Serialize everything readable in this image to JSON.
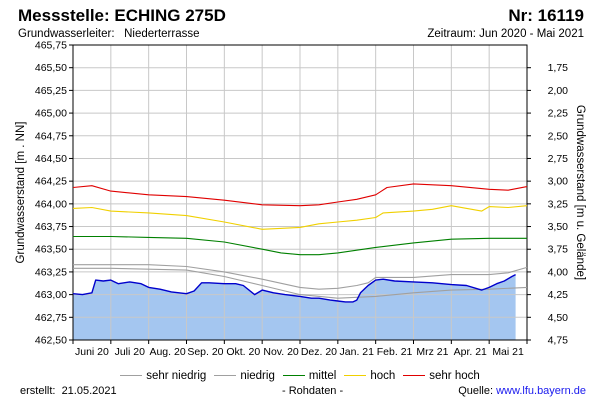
{
  "header": {
    "title": "Messstelle: ECHING 275D",
    "nr": "Nr: 16119",
    "aquifer": "Grundwasserleiter:   Niederterrasse",
    "period": "Zeitraum: Jun 2020 - Mai 2021"
  },
  "footer": {
    "created": "erstellt:  21.05.2021",
    "raw": "- Rohdaten -",
    "source_label": "Quelle: ",
    "source_link": "www.lfu.bayern.de"
  },
  "chart_data": {
    "type": "line",
    "ylabel": "Grundwasserstand [m . NN]",
    "y2label": "Grundwasserstand [m u. Gelände]",
    "ylim": [
      462.5,
      465.75
    ],
    "y2lim": [
      1.5,
      4.75
    ],
    "yticks": [
      "465,75",
      "465,50",
      "465,25",
      "465,00",
      "464,75",
      "464,50",
      "464,25",
      "464,00",
      "463,75",
      "463,50",
      "463,25",
      "463,00",
      "462,75",
      "462,50"
    ],
    "y2ticks": [
      "1,75",
      "2,00",
      "2,25",
      "2,50",
      "2,75",
      "3,00",
      "3,25",
      "3,50",
      "3,75",
      "4,00",
      "4,25",
      "4,50",
      "4,75"
    ],
    "xlim": [
      0,
      12
    ],
    "xticks": [
      "Juni 20",
      "Juli 20",
      "Aug. 20",
      "Sep. 20",
      "Okt. 20",
      "Nov. 20",
      "Dez. 20",
      "Jan. 21",
      "Feb. 21",
      "Mrz 21",
      "Apr. 21",
      "Mai 21"
    ],
    "grid": true,
    "legend_position": "bottom",
    "series": [
      {
        "name": "sehr niedrig",
        "color": "#a0a0a0",
        "x": [
          0,
          0.5,
          1,
          2,
          3,
          4,
          5,
          6,
          6.5,
          7,
          7.5,
          7.8,
          8,
          9,
          10,
          11,
          11.5,
          12
        ],
        "y": [
          463.33,
          463.33,
          463.33,
          463.33,
          463.31,
          463.25,
          463.17,
          463.08,
          463.06,
          463.07,
          463.1,
          463.13,
          463.19,
          463.19,
          463.22,
          463.22,
          463.24,
          463.3
        ]
      },
      {
        "name": "niedrig",
        "color": "#a0a0a0",
        "x": [
          0,
          1,
          2,
          3,
          4,
          5,
          6,
          7,
          8,
          9,
          10,
          11,
          12
        ],
        "y": [
          463.29,
          463.29,
          463.28,
          463.27,
          463.2,
          463.1,
          463.0,
          462.96,
          462.98,
          463.02,
          463.05,
          463.06,
          463.08
        ]
      },
      {
        "name": "mittel",
        "color": "#008000",
        "x": [
          0,
          1,
          2,
          3,
          4,
          5,
          5.5,
          6,
          6.5,
          7,
          8,
          9,
          10,
          11,
          12
        ],
        "y": [
          463.64,
          463.64,
          463.63,
          463.62,
          463.58,
          463.5,
          463.46,
          463.44,
          463.44,
          463.46,
          463.52,
          463.57,
          463.61,
          463.62,
          463.62
        ]
      },
      {
        "name": "hoch",
        "color": "#f0d000",
        "x": [
          0,
          0.5,
          1,
          2,
          3,
          4,
          5,
          6,
          6.5,
          7,
          7.5,
          8,
          8.2,
          9,
          9.5,
          10,
          10.8,
          11,
          11.5,
          12
        ],
        "y": [
          463.95,
          463.96,
          463.92,
          463.9,
          463.87,
          463.8,
          463.72,
          463.74,
          463.78,
          463.8,
          463.82,
          463.85,
          463.9,
          463.92,
          463.94,
          463.98,
          463.92,
          463.97,
          463.96,
          463.98
        ]
      },
      {
        "name": "sehr hoch",
        "color": "#e00000",
        "x": [
          0,
          0.5,
          1,
          2,
          3,
          4,
          5,
          6,
          6.5,
          7,
          7.5,
          8,
          8.3,
          9,
          9.5,
          10,
          11,
          11.5,
          12
        ],
        "y": [
          464.18,
          464.2,
          464.14,
          464.1,
          464.08,
          464.04,
          463.99,
          463.98,
          463.99,
          464.02,
          464.05,
          464.1,
          464.18,
          464.22,
          464.21,
          464.2,
          464.16,
          464.15,
          464.19
        ]
      },
      {
        "name": "Grundwasserstand",
        "color": "#0000cc",
        "x": [
          0,
          0.25,
          0.5,
          0.6,
          0.8,
          1.0,
          1.2,
          1.5,
          1.8,
          2.0,
          2.3,
          2.6,
          3.0,
          3.2,
          3.4,
          3.6,
          4.0,
          4.3,
          4.5,
          4.8,
          5.0,
          5.3,
          5.6,
          6.0,
          6.3,
          6.5,
          6.8,
          7.0,
          7.2,
          7.4,
          7.5,
          7.6,
          7.8,
          8.0,
          8.2,
          8.5,
          9.0,
          9.5,
          10.0,
          10.4,
          10.8,
          11.0,
          11.2,
          11.4,
          11.6,
          11.7
        ],
        "y": [
          463.01,
          463.0,
          463.02,
          463.16,
          463.15,
          463.16,
          463.12,
          463.14,
          463.12,
          463.08,
          463.06,
          463.03,
          463.01,
          463.04,
          463.13,
          463.13,
          463.12,
          463.12,
          463.1,
          463.0,
          463.05,
          463.02,
          463.0,
          462.98,
          462.96,
          462.96,
          462.94,
          462.93,
          462.92,
          462.92,
          462.94,
          463.02,
          463.1,
          463.16,
          463.17,
          463.15,
          463.14,
          463.13,
          463.11,
          463.1,
          463.05,
          463.08,
          463.12,
          463.15,
          463.2,
          463.22
        ]
      }
    ]
  }
}
